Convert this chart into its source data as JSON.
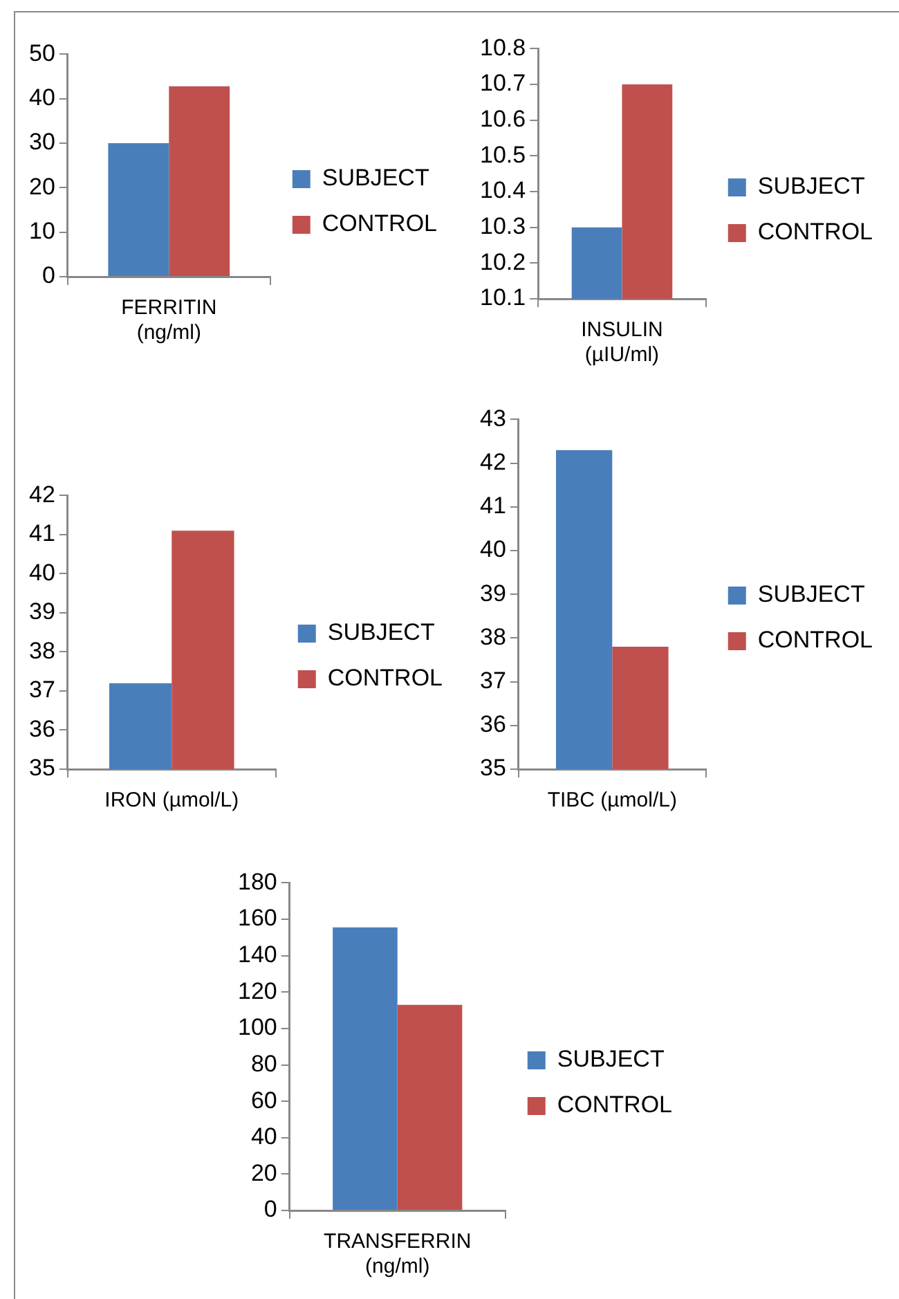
{
  "chart_data": [
    {
      "type": "bar",
      "categories": [
        "FERRITIN (ng/ml)"
      ],
      "series": [
        {
          "name": "SUBJECT",
          "color": "#4a7ebb",
          "values": [
            30
          ]
        },
        {
          "name": "CONTROL",
          "color": "#c0504d",
          "values": [
            42.8
          ]
        }
      ],
      "ylim": [
        0,
        50
      ],
      "yticks": [
        0,
        10,
        20,
        30,
        40,
        50
      ],
      "grid": false,
      "legend": "right"
    },
    {
      "type": "bar",
      "categories": [
        "INSULIN (µIU/ml)"
      ],
      "series": [
        {
          "name": "SUBJECT",
          "color": "#4a7ebb",
          "values": [
            10.3
          ]
        },
        {
          "name": "CONTROL",
          "color": "#c0504d",
          "values": [
            10.7
          ]
        }
      ],
      "ylim": [
        10.1,
        10.8
      ],
      "yticks": [
        10.1,
        10.2,
        10.3,
        10.4,
        10.5,
        10.6,
        10.7,
        10.8
      ],
      "grid": false,
      "legend": "right"
    },
    {
      "type": "bar",
      "categories": [
        "IRON (µmol/L)"
      ],
      "series": [
        {
          "name": "SUBJECT",
          "color": "#4a7ebb",
          "values": [
            37.2
          ]
        },
        {
          "name": "CONTROL",
          "color": "#c0504d",
          "values": [
            41.1
          ]
        }
      ],
      "ylim": [
        35,
        42
      ],
      "yticks": [
        35,
        36,
        37,
        38,
        39,
        40,
        41,
        42
      ],
      "grid": false,
      "legend": "right"
    },
    {
      "type": "bar",
      "categories": [
        "TIBC (µmol/L)"
      ],
      "series": [
        {
          "name": "SUBJECT",
          "color": "#4a7ebb",
          "values": [
            42.3
          ]
        },
        {
          "name": "CONTROL",
          "color": "#c0504d",
          "values": [
            37.8
          ]
        }
      ],
      "ylim": [
        35,
        43
      ],
      "yticks": [
        35,
        36,
        37,
        38,
        39,
        40,
        41,
        42,
        43
      ],
      "grid": false,
      "legend": "right"
    },
    {
      "type": "bar",
      "categories": [
        "TRANSFERRIN (ng/ml)"
      ],
      "series": [
        {
          "name": "SUBJECT",
          "color": "#4a7ebb",
          "values": [
            155.5
          ]
        },
        {
          "name": "CONTROL",
          "color": "#c0504d",
          "values": [
            113
          ]
        }
      ],
      "ylim": [
        0,
        180
      ],
      "yticks": [
        0,
        20,
        40,
        60,
        80,
        100,
        120,
        140,
        160,
        180
      ],
      "grid": false,
      "legend": "right"
    }
  ]
}
